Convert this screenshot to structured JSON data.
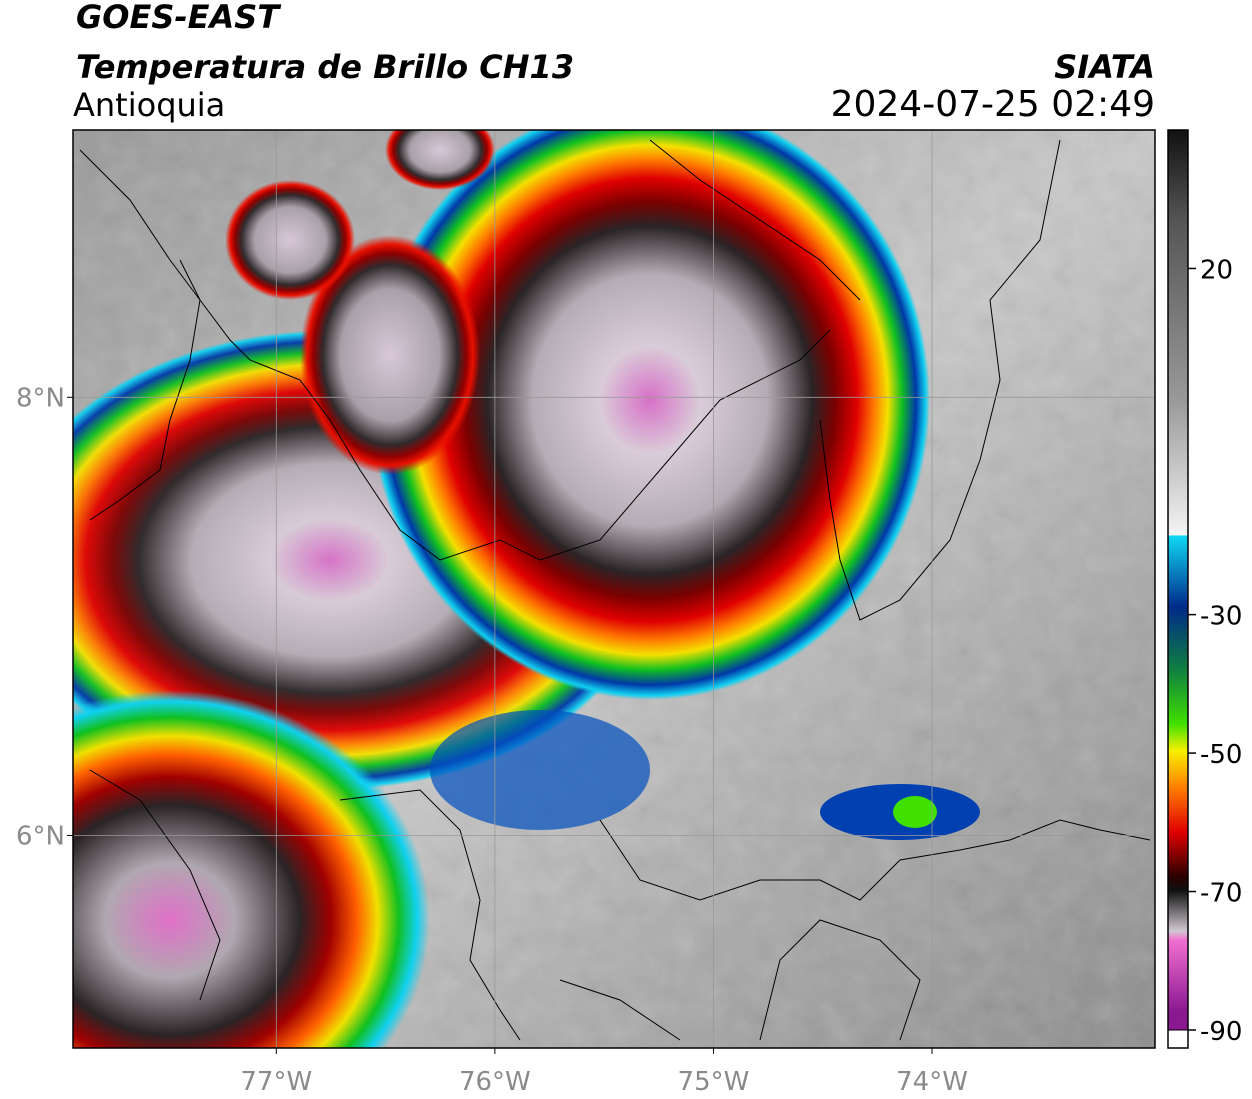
{
  "header": {
    "title": "GOES-EAST",
    "subtitle": "Temperatura de Brillo CH13",
    "region": "Antioquia",
    "source": "SIATA",
    "datetime": "2024-07-25 02:49"
  },
  "map": {
    "xlim": [
      -77.93,
      -72.98
    ],
    "ylim": [
      5.03,
      9.22
    ],
    "xticks": [
      {
        "value": -77,
        "label": "77°W"
      },
      {
        "value": -76,
        "label": "76°W"
      },
      {
        "value": -75,
        "label": "75°W"
      },
      {
        "value": -74,
        "label": "74°W"
      }
    ],
    "yticks": [
      {
        "value": 8,
        "label": "8°N"
      },
      {
        "value": 6,
        "label": "6°N"
      }
    ],
    "grid": true
  },
  "colorbar": {
    "lim": [
      -90,
      40
    ],
    "ticks": [
      20,
      -30,
      -50,
      -70,
      -90
    ]
  }
}
